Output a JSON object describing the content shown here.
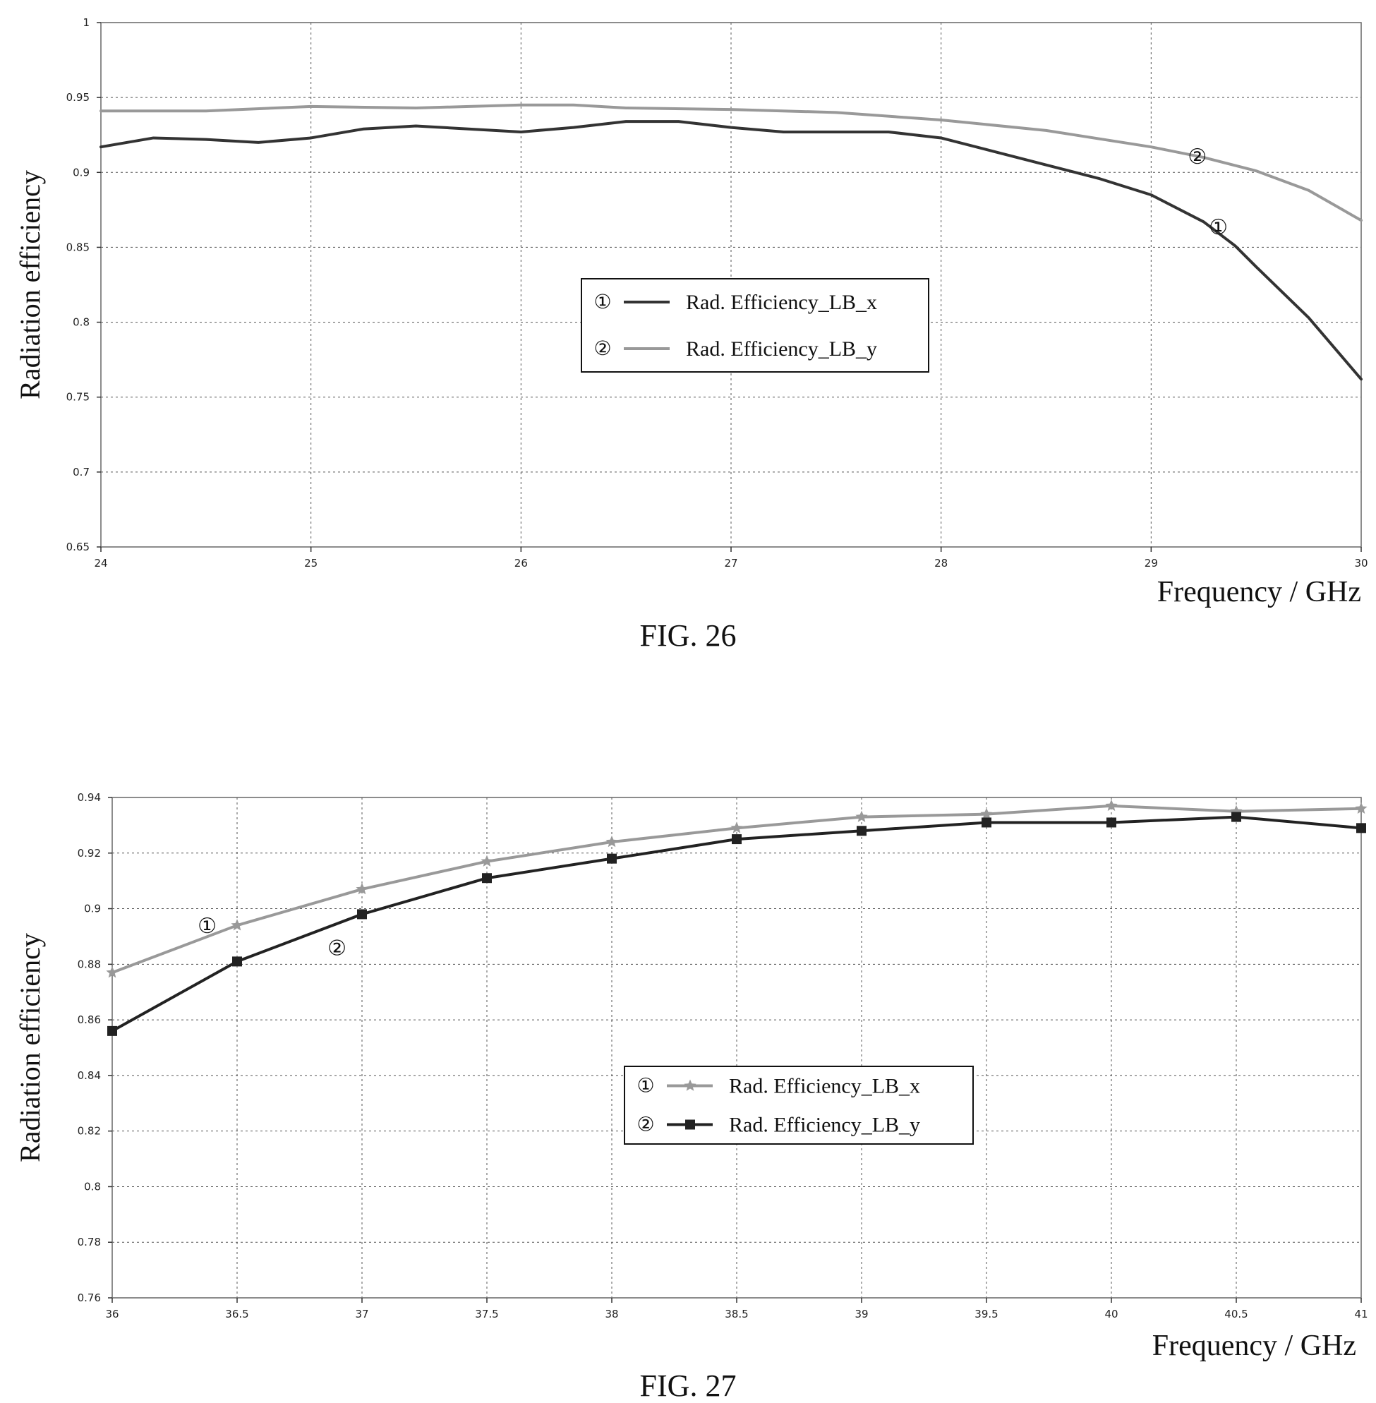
{
  "chart_data": [
    {
      "type": "line",
      "figure_label": "FIG. 26",
      "xlabel": "Frequency / GHz",
      "ylabel": "Radiation efficiency",
      "xlim": [
        24,
        30
      ],
      "ylim": [
        0.65,
        1
      ],
      "x_ticks": [
        "24",
        "25",
        "26",
        "27",
        "28",
        "29",
        "30"
      ],
      "y_ticks": [
        "0.65",
        "0.7",
        "0.75",
        "0.8",
        "0.85",
        "0.9",
        "0.95",
        "1"
      ],
      "grid": true,
      "legend_position": "center-right",
      "series": [
        {
          "name": "Rad. Efficiency_LB_x",
          "marker": "①",
          "color": "#333333",
          "x": [
            24,
            24.25,
            24.5,
            24.75,
            25,
            25.25,
            25.5,
            25.75,
            26,
            26.25,
            26.5,
            26.75,
            27,
            27.25,
            27.5,
            27.75,
            28,
            28.25,
            28.5,
            28.75,
            29,
            29.25,
            29.4,
            29.5,
            29.75,
            30
          ],
          "values": [
            0.917,
            0.923,
            0.922,
            0.92,
            0.923,
            0.929,
            0.931,
            0.929,
            0.927,
            0.93,
            0.934,
            0.934,
            0.93,
            0.927,
            0.927,
            0.927,
            0.923,
            0.914,
            0.905,
            0.896,
            0.885,
            0.867,
            0.851,
            0.837,
            0.803,
            0.762
          ]
        },
        {
          "name": "Rad. Efficiency_LB_y",
          "marker": "②",
          "color": "#999999",
          "x": [
            24,
            24.5,
            25,
            25.5,
            26,
            26.25,
            26.5,
            27,
            27.5,
            28,
            28.5,
            29,
            29.25,
            29.5,
            29.75,
            30
          ],
          "values": [
            0.941,
            0.941,
            0.944,
            0.943,
            0.945,
            0.945,
            0.943,
            0.942,
            0.94,
            0.935,
            0.928,
            0.917,
            0.91,
            0.901,
            0.888,
            0.868
          ]
        }
      ]
    },
    {
      "type": "line",
      "figure_label": "FIG. 27",
      "xlabel": "Frequency / GHz",
      "ylabel": "Radiation efficiency",
      "xlim": [
        36,
        41
      ],
      "ylim": [
        0.76,
        0.94
      ],
      "x_ticks": [
        "36",
        "36.5",
        "37",
        "37.5",
        "38",
        "38.5",
        "39",
        "39.5",
        "40",
        "40.5",
        "41"
      ],
      "y_ticks": [
        "0.76",
        "0.78",
        "0.8",
        "0.82",
        "0.84",
        "0.86",
        "0.88",
        "0.9",
        "0.92",
        "0.94"
      ],
      "grid": true,
      "legend_position": "center-right",
      "series": [
        {
          "name": "Rad. Efficiency_LB_x",
          "marker": "①",
          "color": "#999999",
          "point_marker": "star",
          "x": [
            36,
            36.5,
            37,
            37.5,
            38,
            38.5,
            39,
            39.5,
            40,
            40.5,
            41
          ],
          "values": [
            0.877,
            0.894,
            0.907,
            0.917,
            0.924,
            0.929,
            0.933,
            0.934,
            0.937,
            0.935,
            0.936
          ]
        },
        {
          "name": "Rad. Efficiency_LB_y",
          "marker": "②",
          "color": "#222222",
          "point_marker": "square",
          "x": [
            36,
            36.5,
            37,
            37.5,
            38,
            38.5,
            39,
            39.5,
            40,
            40.5,
            41
          ],
          "values": [
            0.856,
            0.881,
            0.898,
            0.911,
            0.918,
            0.925,
            0.928,
            0.931,
            0.931,
            0.933,
            0.929
          ]
        }
      ]
    }
  ]
}
